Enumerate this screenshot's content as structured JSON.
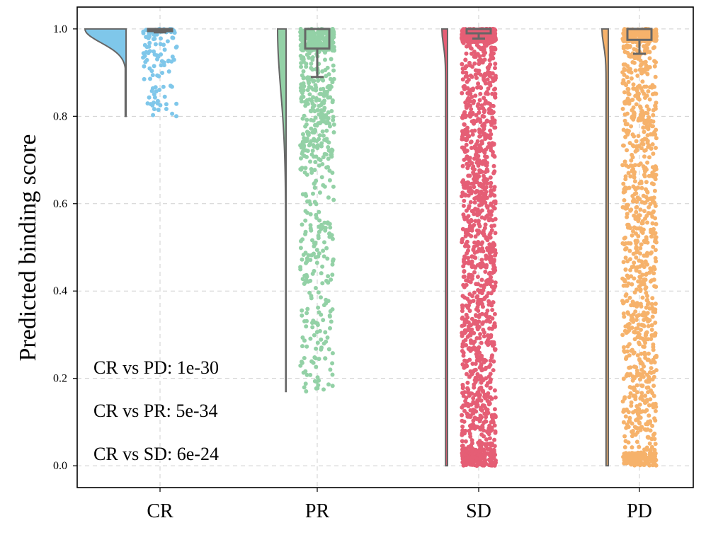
{
  "chart_data": {
    "type": "raincloud",
    "title": "",
    "xlabel": "",
    "ylabel": "Predicted binding score",
    "ylim": [
      -0.05,
      1.05
    ],
    "yticks": [
      0.0,
      0.2,
      0.4,
      0.6,
      0.8,
      1.0
    ],
    "ytick_labels": [
      "0.0",
      "0.2",
      "0.4",
      "0.6",
      "0.8",
      "1.0"
    ],
    "grid": true,
    "categories": [
      "CR",
      "PR",
      "SD",
      "PD"
    ],
    "series": [
      {
        "name": "CR",
        "color": "#7fc7ea",
        "n_points": 130,
        "min": 0.8,
        "max": 1.0,
        "box": {
          "whisker_low": 0.992,
          "q1": 0.995,
          "median": 0.998,
          "q3": 1.0,
          "whisker_high": 1.0
        },
        "violin_range": [
          0.8,
          1.0
        ]
      },
      {
        "name": "PR",
        "color": "#93d1a6",
        "n_points": 700,
        "min": 0.17,
        "max": 1.0,
        "box": {
          "whisker_low": 0.89,
          "q1": 0.955,
          "median": 1.0,
          "q3": 1.0,
          "whisker_high": 1.0
        },
        "violin_range": [
          0.17,
          1.0
        ]
      },
      {
        "name": "SD",
        "color": "#e55e75",
        "n_points": 1700,
        "min": 0.0,
        "max": 1.0,
        "box": {
          "whisker_low": 0.978,
          "q1": 0.99,
          "median": 1.0,
          "q3": 1.0,
          "whisker_high": 1.0
        },
        "violin_range": [
          0.0,
          1.0
        ]
      },
      {
        "name": "PD",
        "color": "#f6b26b",
        "n_points": 1200,
        "min": 0.0,
        "max": 1.0,
        "box": {
          "whisker_low": 0.943,
          "q1": 0.975,
          "median": 1.0,
          "q3": 1.0,
          "whisker_high": 1.0
        },
        "violin_range": [
          0.0,
          1.0
        ]
      }
    ],
    "annotations": [
      "CR vs PD: 1e-30",
      "CR vs PR: 5e-34",
      "CR vs SD: 6e-24"
    ]
  }
}
